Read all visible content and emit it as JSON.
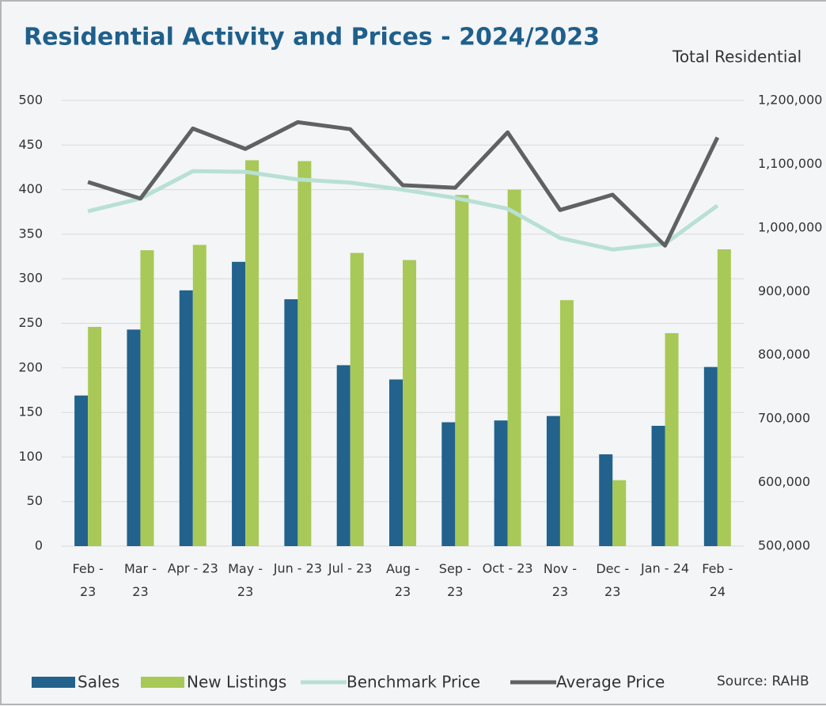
{
  "chart_data": {
    "type": "bar_line",
    "title": "Residential Activity and Prices - 2024/2023",
    "y2_label": "Total Residential",
    "source": "Source: RAHB",
    "categories": [
      "Feb - 23",
      "Mar - 23",
      "Apr - 23",
      "May - 23",
      "Jun - 23",
      "Jul - 23",
      "Aug - 23",
      "Sep - 23",
      "Oct - 23",
      "Nov - 23",
      "Dec - 23",
      "Jan - 24",
      "Feb - 24"
    ],
    "series": [
      {
        "name": "Sales",
        "type": "bar",
        "color": "#22628c",
        "values": [
          169,
          243,
          287,
          319,
          277,
          203,
          187,
          139,
          141,
          146,
          103,
          135,
          201
        ]
      },
      {
        "name": "New Listings",
        "type": "bar",
        "color": "#a8c957",
        "values": [
          246,
          332,
          338,
          433,
          432,
          329,
          321,
          394,
          400,
          276,
          74,
          239,
          333
        ]
      },
      {
        "name": "Benchmark Price",
        "type": "line",
        "axis": "y2",
        "color": "#b8e0d4",
        "values": [
          1026000,
          1046000,
          1089000,
          1088000,
          1076000,
          1071000,
          1060000,
          1047000,
          1030000,
          984000,
          966000,
          975000,
          1035000
        ]
      },
      {
        "name": "Average Price",
        "type": "line",
        "axis": "y2",
        "color": "#5f6163",
        "values": [
          1072000,
          1046000,
          1156000,
          1124000,
          1166000,
          1155000,
          1067000,
          1063000,
          1150000,
          1028000,
          1052000,
          972000,
          1142000
        ]
      }
    ],
    "ylim": [
      0,
      500
    ],
    "yticks": [
      0,
      50,
      100,
      150,
      200,
      250,
      300,
      350,
      400,
      450,
      500
    ],
    "y2lim": [
      500000,
      1200000
    ],
    "y2ticks": [
      {
        "value": 500000,
        "label": "500,000"
      },
      {
        "value": 600000,
        "label": "600,000"
      },
      {
        "value": 700000,
        "label": "700,000"
      },
      {
        "value": 800000,
        "label": "800,000"
      },
      {
        "value": 900000,
        "label": "900,000"
      },
      {
        "value": 1000000,
        "label": "1,000,000"
      },
      {
        "value": 1100000,
        "label": "1,100,000"
      },
      {
        "value": 1200000,
        "label": "1,200,000"
      }
    ],
    "grid": true,
    "legend": "bottom"
  }
}
